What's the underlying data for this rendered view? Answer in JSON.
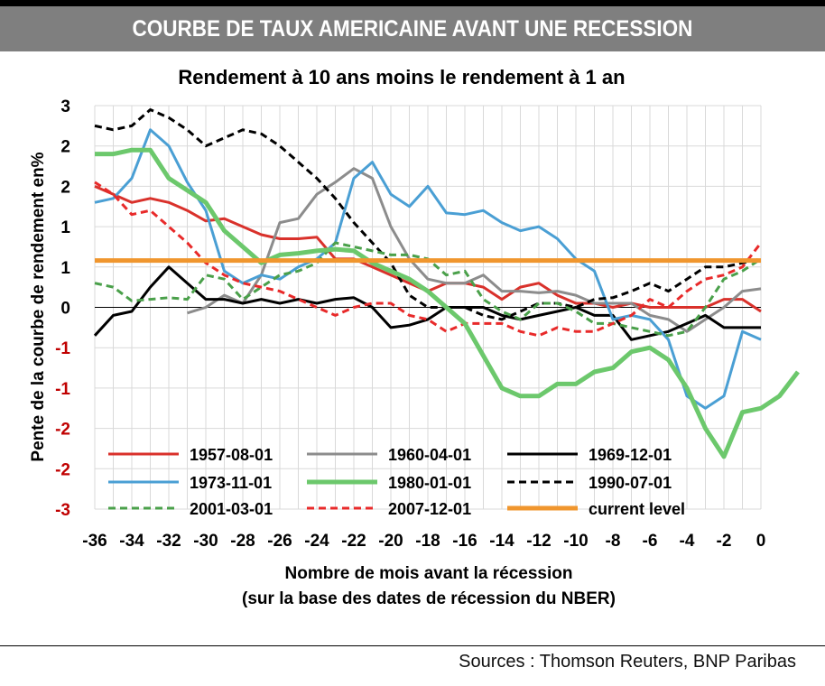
{
  "header": {
    "banner_title": "COURBE DE TAUX AMERICAINE AVANT UNE RECESSION"
  },
  "footer": {
    "source": "Sources : Thomson Reuters, BNP Paribas"
  },
  "chart_data": {
    "type": "line",
    "title": "Rendement à 10 ans moins le rendement à 1 an",
    "xlabel": "Nombre de mois avant la récession",
    "xlabel2": "(sur la base des dates de récession du NBER)",
    "ylabel": "Pente de la courbe de rendement en%",
    "xlim": [
      -36,
      0
    ],
    "ylim": [
      -2.5,
      2.5
    ],
    "grid": true,
    "legend": "bottom-inside",
    "x_ticks": [
      -36,
      -34,
      -32,
      -30,
      -28,
      -26,
      -24,
      -22,
      -20,
      -18,
      -16,
      -14,
      -12,
      -10,
      -8,
      -6,
      -4,
      -2,
      0
    ],
    "x_tick_labels": [
      "-36",
      "-34",
      "-32",
      "-30",
      "-28",
      "-26",
      "-24",
      "-22",
      "-20",
      "-18",
      "-16",
      "-14",
      "-12",
      "-10",
      "-8",
      "-6",
      "-4",
      "-2",
      "0"
    ],
    "y_ticks": [
      2.5,
      2,
      1.5,
      1,
      0.5,
      0,
      -0.5,
      -1,
      -1.5,
      -2,
      -2.5
    ],
    "y_tick_labels": [
      "3",
      "2",
      "2",
      "1",
      "1",
      "0",
      "-1",
      "-1",
      "-2",
      "-2",
      "-3"
    ],
    "series": [
      {
        "name": "1957-08-01",
        "color": "#d9312b",
        "dash": "none",
        "width": 3,
        "x_start": -36,
        "values": [
          1.5,
          1.4,
          1.3,
          1.35,
          1.3,
          1.2,
          1.07,
          1.1,
          1.0,
          0.9,
          0.85,
          0.85,
          0.87,
          0.6,
          0.6,
          0.5,
          0.4,
          0.3,
          0.2,
          0.3,
          0.3,
          0.25,
          0.1,
          0.25,
          0.3,
          0.15,
          0.05,
          0.05,
          0.0,
          0.05,
          0.0,
          0.0,
          0.0,
          0.0,
          0.1,
          0.1,
          -0.05
        ]
      },
      {
        "name": "1960-04-01",
        "color": "#8c8c8c",
        "dash": "none",
        "width": 3,
        "x_start": -31,
        "values": [
          -0.07,
          0.0,
          0.15,
          0.05,
          0.4,
          1.05,
          1.1,
          1.4,
          1.55,
          1.72,
          1.6,
          1.0,
          0.6,
          0.35,
          0.3,
          0.3,
          0.4,
          0.2,
          0.2,
          0.18,
          0.2,
          0.15,
          0.05,
          0.05,
          0.05,
          -0.1,
          -0.15,
          -0.3,
          -0.15,
          0.0,
          0.2,
          0.23
        ]
      },
      {
        "name": "1969-12-01",
        "color": "#000000",
        "dash": "none",
        "width": 3,
        "x_start": -36,
        "values": [
          -0.35,
          -0.1,
          -0.05,
          0.25,
          0.5,
          0.3,
          0.1,
          0.1,
          0.05,
          0.1,
          0.05,
          0.1,
          0.05,
          0.1,
          0.12,
          0.0,
          -0.25,
          -0.22,
          -0.15,
          0.0,
          0.0,
          0.0,
          -0.1,
          -0.15,
          -0.1,
          -0.05,
          0.0,
          -0.1,
          -0.1,
          -0.4,
          -0.35,
          -0.3,
          -0.2,
          -0.1,
          -0.25,
          -0.25,
          -0.25
        ]
      },
      {
        "name": "1973-11-01",
        "color": "#4a9fd4",
        "dash": "none",
        "width": 3,
        "x_start": -36,
        "values": [
          1.3,
          1.35,
          1.6,
          2.2,
          2.0,
          1.55,
          1.2,
          0.45,
          0.3,
          0.4,
          0.35,
          0.5,
          0.6,
          0.8,
          1.6,
          1.8,
          1.4,
          1.25,
          1.5,
          1.17,
          1.15,
          1.2,
          1.05,
          0.95,
          1.0,
          0.85,
          0.6,
          0.45,
          -0.15,
          -0.1,
          -0.15,
          -0.4,
          -1.1,
          -1.25,
          -1.1,
          -0.3,
          -0.4
        ]
      },
      {
        "name": "1980-01-01",
        "color": "#6cc86c",
        "dash": "none",
        "width": 5,
        "x_start": -36,
        "values": [
          1.9,
          1.9,
          1.95,
          1.95,
          1.6,
          1.45,
          1.3,
          0.95,
          0.75,
          0.55,
          0.65,
          0.67,
          0.7,
          0.72,
          0.7,
          0.55,
          0.45,
          0.35,
          0.2,
          0.0,
          -0.2,
          -0.6,
          -1.0,
          -1.1,
          -1.1,
          -0.95,
          -0.95,
          -0.8,
          -0.75,
          -0.55,
          -0.5,
          -0.65,
          -1.0,
          -1.5,
          -1.85,
          -1.3,
          -1.25,
          -1.1,
          -0.8
        ]
      },
      {
        "name": "1990-07-01",
        "color": "#000000",
        "dash": "8,5",
        "width": 3,
        "x_start": -36,
        "values": [
          2.25,
          2.2,
          2.25,
          2.45,
          2.35,
          2.2,
          2.0,
          2.1,
          2.2,
          2.15,
          2.0,
          1.8,
          1.6,
          1.35,
          1.05,
          0.8,
          0.55,
          0.15,
          0.0,
          0.0,
          0.0,
          -0.1,
          -0.15,
          -0.05,
          0.05,
          0.05,
          0.0,
          0.1,
          0.12,
          0.2,
          0.3,
          0.2,
          0.35,
          0.5,
          0.5,
          0.55,
          0.6
        ]
      },
      {
        "name": "2001-03-01",
        "color": "#4aa04a",
        "dash": "8,5",
        "width": 3,
        "x_start": -36,
        "values": [
          0.3,
          0.25,
          0.08,
          0.1,
          0.12,
          0.1,
          0.4,
          0.35,
          0.1,
          0.25,
          0.4,
          0.45,
          0.55,
          0.8,
          0.75,
          0.7,
          0.65,
          0.65,
          0.6,
          0.4,
          0.45,
          0.1,
          -0.05,
          -0.15,
          0.05,
          0.05,
          -0.05,
          -0.2,
          -0.2,
          -0.25,
          -0.3,
          -0.35,
          -0.3,
          0.0,
          0.35,
          0.45,
          0.6
        ]
      },
      {
        "name": "2007-12-01",
        "color": "#e82a2a",
        "dash": "8,5",
        "width": 3,
        "x_start": -36,
        "values": [
          1.55,
          1.4,
          1.15,
          1.2,
          1.0,
          0.8,
          0.55,
          0.4,
          0.3,
          0.25,
          0.2,
          0.1,
          0.0,
          -0.1,
          0.0,
          0.05,
          0.05,
          -0.1,
          -0.15,
          -0.3,
          -0.2,
          -0.2,
          -0.2,
          -0.3,
          -0.35,
          -0.25,
          -0.3,
          -0.3,
          -0.2,
          -0.1,
          0.1,
          0.0,
          0.2,
          0.35,
          0.4,
          0.5,
          0.8
        ]
      },
      {
        "name": "current level",
        "color": "#f0962e",
        "dash": "none",
        "width": 5,
        "x_start": -36,
        "values": [
          0.58,
          0.58
        ]
      }
    ]
  }
}
